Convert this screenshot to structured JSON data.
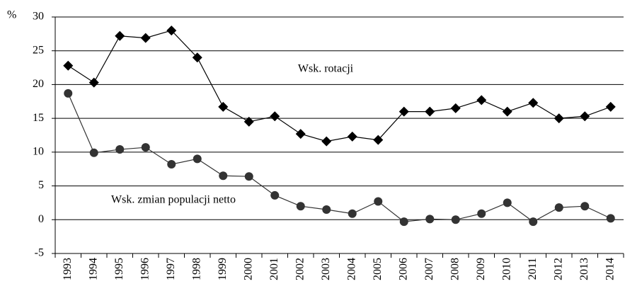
{
  "chart_data": {
    "type": "line",
    "y_unit": "%",
    "categories": [
      "1993",
      "1994",
      "1995",
      "1996",
      "1997",
      "1998",
      "1999",
      "2000",
      "2001",
      "2002",
      "2003",
      "2004",
      "2005",
      "2006",
      "2007",
      "2008",
      "2009",
      "2010",
      "2011",
      "2012",
      "2013",
      "2014"
    ],
    "series": [
      {
        "name": "Wsk. rotacji",
        "color": "#000000",
        "marker": "diamond",
        "values": [
          22.8,
          20.3,
          27.2,
          26.9,
          28.0,
          24.0,
          16.7,
          14.5,
          15.3,
          12.7,
          11.6,
          12.3,
          11.8,
          16.0,
          16.0,
          16.5,
          17.7,
          16.0,
          17.3,
          15.0,
          15.3,
          16.7
        ]
      },
      {
        "name": "Wsk. zmian populacji netto",
        "color": "#333333",
        "marker": "circle",
        "values": [
          18.7,
          9.9,
          10.4,
          10.7,
          8.2,
          9.0,
          6.5,
          6.4,
          3.6,
          2.0,
          1.5,
          0.9,
          2.7,
          -0.3,
          0.1,
          0.0,
          0.9,
          2.5,
          -0.3,
          1.8,
          2.0,
          0.2
        ]
      }
    ],
    "ylim": [
      -5,
      30
    ],
    "yticks": [
      -5,
      0,
      5,
      10,
      15,
      20,
      25,
      30
    ],
    "grid": true
  }
}
